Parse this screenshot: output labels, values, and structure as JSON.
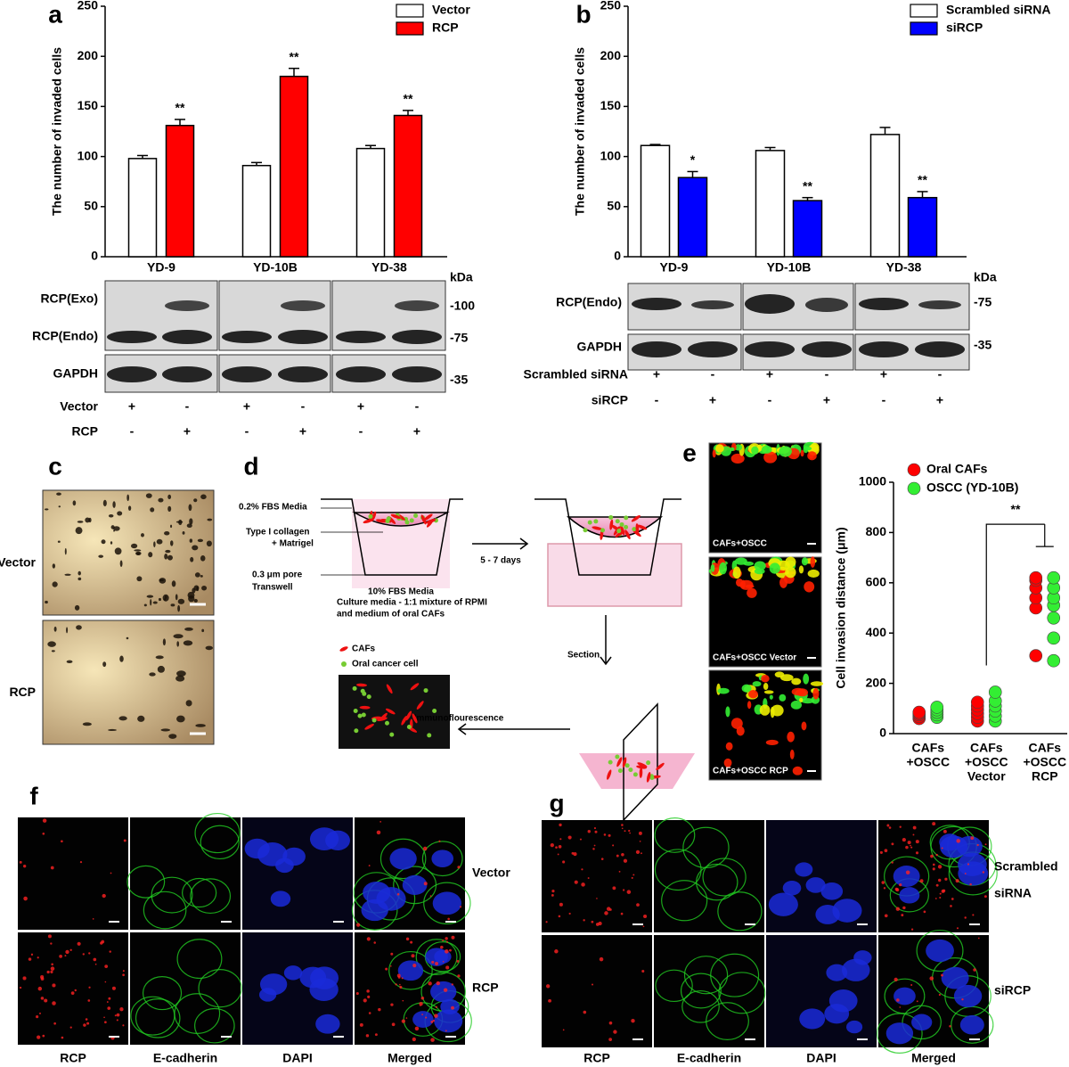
{
  "chart_data": [
    {
      "type": "bar",
      "panel": "a",
      "ylabel": "The number of invaded cells",
      "categories": [
        "YD-9",
        "YD-10B",
        "YD-38"
      ],
      "series": [
        {
          "name": "Vector",
          "color": "#ffffff",
          "values": [
            98,
            91,
            108
          ],
          "errors": [
            3,
            3,
            3
          ]
        },
        {
          "name": "RCP",
          "color": "#ff0000",
          "values": [
            131,
            180,
            141
          ],
          "errors": [
            6,
            8,
            5
          ],
          "annotations": [
            "**",
            "**",
            "**"
          ]
        }
      ],
      "ylim": [
        0,
        250
      ],
      "yticks": [
        0,
        50,
        100,
        150,
        200,
        250
      ]
    },
    {
      "type": "bar",
      "panel": "b",
      "ylabel": "The number of invaded cells",
      "categories": [
        "YD-9",
        "YD-10B",
        "YD-38"
      ],
      "series": [
        {
          "name": "Scrambled siRNA",
          "color": "#ffffff",
          "values": [
            111,
            106,
            122
          ],
          "errors": [
            1,
            3,
            7
          ]
        },
        {
          "name": "siRCP",
          "color": "#0000ff",
          "values": [
            79,
            56,
            59
          ],
          "errors": [
            6,
            3,
            6
          ],
          "annotations": [
            "*",
            "**",
            "**"
          ]
        }
      ],
      "ylim": [
        0,
        250
      ],
      "yticks": [
        0,
        50,
        100,
        150,
        200,
        250
      ]
    },
    {
      "type": "dot",
      "panel": "e",
      "ylabel": "Cell invasion distance (μm)",
      "categories": [
        [
          "CAFs",
          "+OSCC"
        ],
        [
          "CAFs",
          "+OSCC",
          "Vector"
        ],
        [
          "CAFs",
          "+OSCC",
          "RCP"
        ]
      ],
      "series": [
        {
          "name": "Oral CAFs",
          "color": "#ff0000",
          "values": [
            [
              60,
              68,
              75,
              80,
              85
            ],
            [
              50,
              65,
              80,
              95,
              110,
              125
            ],
            [
              310,
              500,
              540,
              580,
              610,
              620
            ]
          ]
        },
        {
          "name": "OSCC (YD-10B)",
          "color": "#33ee33",
          "values": [
            [
              65,
              75,
              85,
              95,
              105
            ],
            [
              50,
              70,
              90,
              110,
              130,
              165
            ],
            [
              290,
              380,
              460,
              510,
              540,
              580,
              620
            ]
          ]
        }
      ],
      "annotations": [
        "**"
      ],
      "ylim": [
        0,
        1000
      ],
      "yticks": [
        0,
        200,
        400,
        600,
        800,
        1000
      ]
    }
  ],
  "blot_a": {
    "rows": [
      "RCP(Exo)",
      "RCP(Endo)",
      "GAPDH"
    ],
    "kda_label": "kDa",
    "markers": [
      "-100",
      "-75",
      "-35"
    ],
    "conditions": [
      {
        "name": "Vector",
        "signs": [
          "+",
          "-",
          "+",
          "-",
          "+",
          "-"
        ]
      },
      {
        "name": "RCP",
        "signs": [
          "-",
          "+",
          "-",
          "+",
          "-",
          "+"
        ]
      }
    ]
  },
  "blot_b": {
    "rows": [
      "RCP(Endo)",
      "GAPDH"
    ],
    "kda_label": "kDa",
    "markers": [
      "-75",
      "-35"
    ],
    "conditions": [
      {
        "name": "Scrambled siRNA",
        "signs": [
          "+",
          "-",
          "+",
          "-",
          "+",
          "-"
        ]
      },
      {
        "name": "siRCP",
        "signs": [
          "-",
          "+",
          "-",
          "+",
          "-",
          "+"
        ]
      }
    ]
  },
  "panel_c": {
    "panel": "c",
    "rows": [
      "Vector",
      "RCP"
    ]
  },
  "panel_d": {
    "panel": "d",
    "media_top": "0.2% FBS Media",
    "collagen": [
      "Type I collagen",
      "+ Matrigel"
    ],
    "pore": [
      "0.3 μm pore",
      "Transwell"
    ],
    "media_bottom": "10% FBS Media",
    "culture": [
      "Culture media - 1:1 mixture of RPMI",
      "and medium of oral CAFs"
    ],
    "time": "5 - 7 days",
    "section": "Section",
    "legend": [
      "CAFs",
      "Oral cancer cell"
    ],
    "imaging": "Immunoflourescence"
  },
  "panel_e": {
    "images": [
      "CAFs+OSCC",
      "CAFs+OSCC Vector",
      "CAFs+OSCC RCP"
    ]
  },
  "panel_f": {
    "panel": "f",
    "rows": [
      [
        "Vector"
      ],
      [
        "RCP"
      ]
    ],
    "columns": [
      "RCP",
      "E-cadherin",
      "DAPI",
      "Merged"
    ]
  },
  "panel_g": {
    "panel": "g",
    "rows": [
      [
        "Scrambled",
        "siRNA"
      ],
      [
        "siRCP"
      ]
    ],
    "columns": [
      "RCP",
      "E-cadherin",
      "DAPI",
      "Merged"
    ]
  }
}
